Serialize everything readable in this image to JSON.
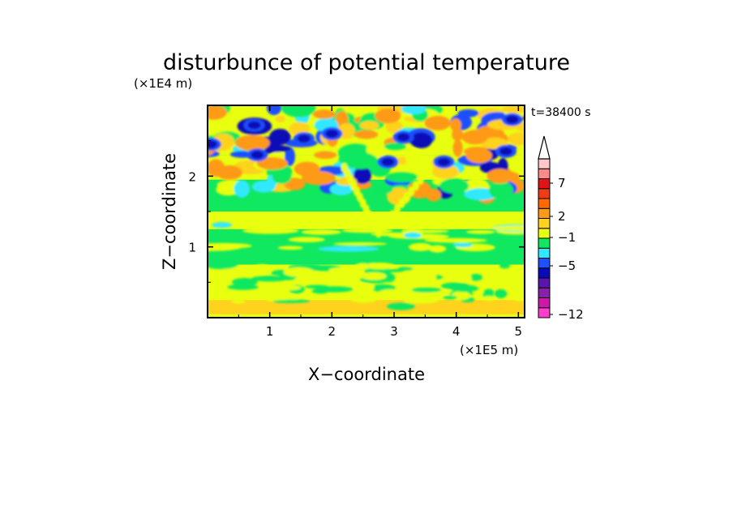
{
  "chart_data": {
    "type": "heatmap",
    "title": "disturbunce of potential temperature",
    "time_label": "t=38400 s",
    "xlabel": "X−coordinate",
    "ylabel": "Z−coordinate",
    "x_scale_label": "(×1E5 m)",
    "y_scale_label": "(×1E4 m)",
    "xlim": [
      0,
      5.1
    ],
    "ylim": [
      0,
      3
    ],
    "x_ticks": [
      1,
      2,
      3,
      4,
      5
    ],
    "y_ticks": [
      1,
      2
    ],
    "colorbar": {
      "extend_top": true,
      "colors": [
        "#ff3ccf",
        "#cc1aa8",
        "#8b1fa8",
        "#5a14b0",
        "#0a0ab8",
        "#1e50ff",
        "#30e8ff",
        "#10e860",
        "#e8ff10",
        "#ffd21e",
        "#ff9a18",
        "#ff6a00",
        "#f03c14",
        "#e01414",
        "#ff8a8a",
        "#ffc8c8"
      ],
      "tick_labels": [
        "7",
        "2",
        "−1",
        "−5",
        "−12"
      ],
      "tick_levels": [
        7,
        2,
        -1,
        -5,
        -12
      ]
    },
    "field_levels": {
      "near_surface": "yellow/green banded (0 to 1)",
      "mid_level": "mostly green (about -1 to 0)",
      "upper_level": "alternating orange and blue cells (about -5 to 5)"
    }
  }
}
